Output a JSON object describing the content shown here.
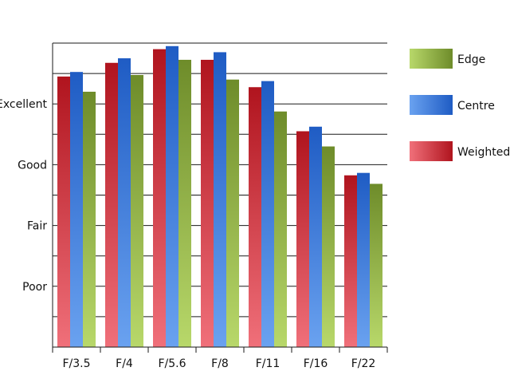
{
  "chart_data": {
    "type": "bar",
    "title": "",
    "xlabel": "",
    "ylabel": "",
    "categories": [
      "F/3.5",
      "F/4",
      "F/5.6",
      "F/8",
      "F/11",
      "F/16",
      "F/22"
    ],
    "y_tick_labels": [
      {
        "label": "Poor",
        "value": 2
      },
      {
        "label": "Fair",
        "value": 4
      },
      {
        "label": "Good",
        "value": 6
      },
      {
        "label": "Excellent",
        "value": 8
      }
    ],
    "ylim": [
      0,
      10
    ],
    "grid": true,
    "legend_position": "right",
    "series": [
      {
        "name": "Weighted",
        "values": [
          8.9,
          9.35,
          9.8,
          9.45,
          8.55,
          7.1,
          5.65
        ],
        "colors": {
          "light": "#f0707a",
          "dark": "#b0141e"
        }
      },
      {
        "name": "Centre",
        "values": [
          9.05,
          9.5,
          9.9,
          9.7,
          8.75,
          7.25,
          5.73
        ],
        "colors": {
          "light": "#6aa2f0",
          "dark": "#1f5cc4"
        }
      },
      {
        "name": "Edge",
        "values": [
          8.4,
          8.95,
          9.45,
          8.8,
          7.75,
          6.6,
          5.37
        ],
        "colors": {
          "light": "#b8d86a",
          "dark": "#6e8c2a"
        }
      }
    ],
    "legend_order": [
      "Edge",
      "Centre",
      "Weighted"
    ]
  }
}
